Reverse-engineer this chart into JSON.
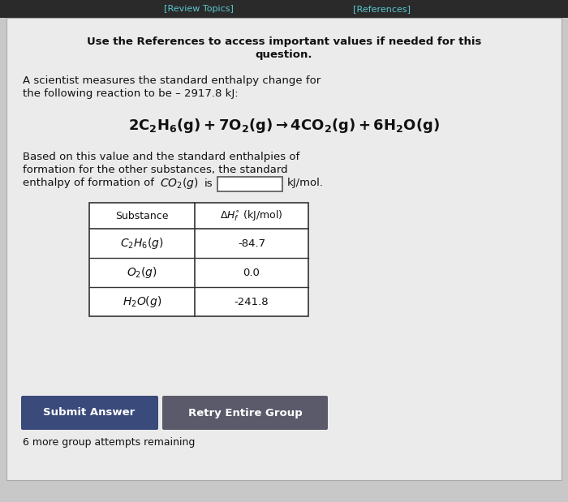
{
  "bg_color": "#c8c8c8",
  "header_bg": "#2a2a2a",
  "header_links": [
    "[Review Topics]",
    "[References]"
  ],
  "header_link_color": "#5bc8d0",
  "bold_title": "Use the References to access important values if needed for this\nquestion.",
  "paragraph1_line1": "A scientist measures the standard enthalpy change for",
  "paragraph1_line2": "the following reaction to be – 2917.8 kJ:",
  "equation": "$2C_2H_6(g) + 7O_2(g) \\rightarrow 4CO_2(g) + 6H_2O(g)$",
  "para2_line1": "Based on this value and the standard enthalpies of",
  "para2_line2": "formation for the other substances, the standard",
  "para2_line3_pre": "enthalpy of formation of",
  "para2_co2": "$CO_2(g)$",
  "para2_is": "is",
  "paragraph2_post": "kJ/mol.",
  "table_rows": [
    [
      "$C_2H_6(g)$",
      "-84.7"
    ],
    [
      "$O_2(g)$",
      "0.0"
    ],
    [
      "$H_2O(g)$",
      "-241.8"
    ]
  ],
  "button1_text": "Submit Answer",
  "button2_text": "Retry Entire Group",
  "button1_color": "#3a4a7a",
  "button2_color": "#5a5a6a",
  "footer_text": "6 more group attempts remaining",
  "text_color": "#111111",
  "white_bg": "#ebebeb"
}
